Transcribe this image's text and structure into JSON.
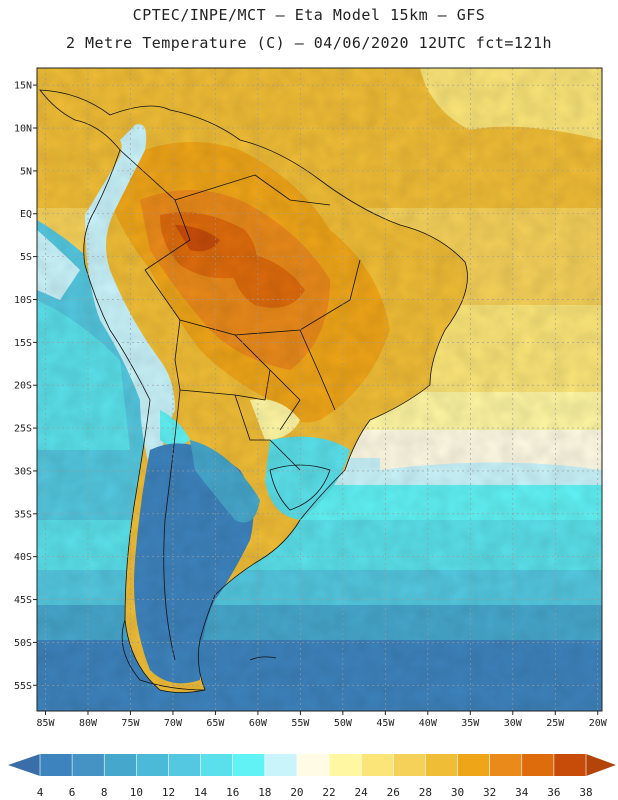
{
  "header": {
    "title_line1": "CPTEC/INPE/MCT —  Eta Model 15km — GFS",
    "title_line2": "2 Metre Temperature (C) — 04/06/2020 12UTC fct=121h"
  },
  "map": {
    "region": "South America",
    "lat_labels": [
      "15N",
      "10N",
      "5N",
      "EQ",
      "5S",
      "10S",
      "15S",
      "20S",
      "25S",
      "30S",
      "35S",
      "40S",
      "45S",
      "50S",
      "55S"
    ],
    "lat_values": [
      15,
      10,
      5,
      0,
      -5,
      -10,
      -15,
      -20,
      -25,
      -30,
      -35,
      -40,
      -45,
      -50,
      -55
    ],
    "lon_labels": [
      "85W",
      "80W",
      "75W",
      "70W",
      "65W",
      "60W",
      "55W",
      "50W",
      "45W",
      "40W",
      "35W",
      "30W",
      "25W",
      "20W"
    ],
    "lon_values": [
      -85,
      -80,
      -75,
      -70,
      -65,
      -60,
      -55,
      -50,
      -45,
      -40,
      -35,
      -30,
      -25,
      -20
    ],
    "lon_range": [
      -86,
      -19.5
    ],
    "lat_range": [
      -58,
      17
    ]
  },
  "colorbar": {
    "labels": [
      "4",
      "6",
      "8",
      "10",
      "12",
      "14",
      "16",
      "18",
      "20",
      "22",
      "24",
      "26",
      "28",
      "30",
      "32",
      "34",
      "36",
      "38"
    ],
    "colors": [
      "#3d83bd",
      "#4592c4",
      "#46a7cc",
      "#4bbad8",
      "#53c8e0",
      "#5ae0ea",
      "#60f2f5",
      "#c9f4fb",
      "#fffbe4",
      "#fff7a2",
      "#fbe578",
      "#f6d159",
      "#f0bd36",
      "#efa518",
      "#ea8a1a",
      "#de6b0c",
      "#c74c0a"
    ],
    "low_end_color": "#3a6ea8",
    "high_end_color": "#b3440a"
  }
}
